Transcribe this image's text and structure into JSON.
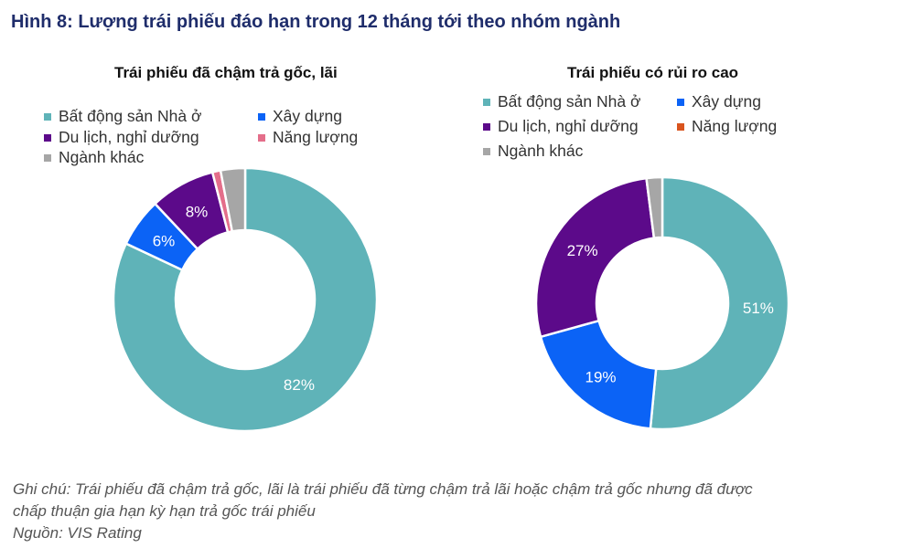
{
  "figure_title": "Hình 8: Lượng trái phiếu đáo hạn trong 12 tháng tới theo nhóm ngành",
  "colors": {
    "real_estate": "#5fb3b8",
    "construction": "#0b63f6",
    "tourism": "#5c0a8a",
    "energy_left": "#e46e8a",
    "energy_right": "#d9541e",
    "other": "#a6a6a6"
  },
  "chart_data": [
    {
      "type": "pie",
      "donut": true,
      "title": "Trái phiếu đã chậm trả gốc, lãi",
      "legend": [
        "Bất động sản Nhà ở",
        "Xây dựng",
        "Du lịch, nghỉ dưỡng",
        "Năng lượng",
        "Ngành khác"
      ],
      "slices": [
        {
          "name": "Bất động sản Nhà ở",
          "value": 82,
          "label": "82%",
          "color": "#5fb3b8"
        },
        {
          "name": "Xây dựng",
          "value": 6,
          "label": "6%",
          "color": "#0b63f6"
        },
        {
          "name": "Du lịch, nghỉ dưỡng",
          "value": 8,
          "label": "8%",
          "color": "#5c0a8a"
        },
        {
          "name": "Năng lượng",
          "value": 1,
          "label": "",
          "color": "#e46e8a"
        },
        {
          "name": "Ngành khác",
          "value": 3,
          "label": "",
          "color": "#a6a6a6"
        }
      ]
    },
    {
      "type": "pie",
      "donut": true,
      "title": "Trái phiếu có rủi ro cao",
      "legend": [
        "Bất động sản Nhà ở",
        "Xây dựng",
        "Du lịch, nghỉ dưỡng",
        "Năng lượng",
        "Ngành khác"
      ],
      "slices": [
        {
          "name": "Bất động sản Nhà ở",
          "value": 51,
          "label": "51%",
          "color": "#5fb3b8"
        },
        {
          "name": "Xây dựng",
          "value": 19,
          "label": "19%",
          "color": "#0b63f6"
        },
        {
          "name": "Du lịch, nghỉ dưỡng",
          "value": 27,
          "label": "27%",
          "color": "#5c0a8a"
        },
        {
          "name": "Năng lượng",
          "value": 0,
          "label": "",
          "color": "#d9541e"
        },
        {
          "name": "Ngành khác",
          "value": 2,
          "label": "",
          "color": "#a6a6a6"
        }
      ]
    }
  ],
  "notes": {
    "line1": "Ghi chú: Trái phiếu đã chậm trả gốc, lãi là trái phiếu đã từng chậm trả lãi hoặc chậm trả gốc nhưng đã được",
    "line2": "chấp thuận gia hạn kỳ hạn trả gốc trái phiếu",
    "source": "Nguồn: VIS Rating"
  }
}
